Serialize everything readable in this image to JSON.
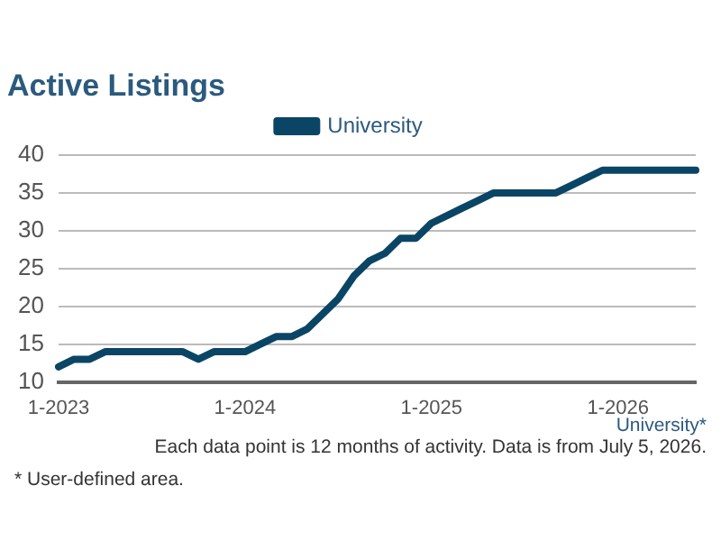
{
  "chart_data": {
    "type": "line",
    "title": "Active Listings",
    "categories": [
      "1-2023",
      null,
      null,
      null,
      null,
      null,
      null,
      null,
      null,
      null,
      null,
      null,
      "1-2024",
      null,
      null,
      null,
      null,
      null,
      null,
      null,
      null,
      null,
      null,
      null,
      "1-2025",
      null,
      null,
      null,
      null,
      null,
      null,
      null,
      null,
      null,
      null,
      null,
      "1-2026",
      null,
      null,
      null,
      null,
      null
    ],
    "series": [
      {
        "name": "University",
        "color": "#0b4566",
        "values": [
          12,
          13,
          13,
          14,
          14,
          14,
          14,
          14,
          14,
          13,
          14,
          14,
          14,
          15,
          16,
          16,
          17,
          19,
          21,
          24,
          26,
          27,
          29,
          29,
          31,
          32,
          33,
          34,
          35,
          35,
          35,
          35,
          35,
          36,
          37,
          38,
          38,
          38,
          38,
          38,
          38,
          38
        ]
      }
    ],
    "ylim": [
      10,
      40
    ],
    "yticks": [
      10,
      15,
      20,
      25,
      30,
      35,
      40
    ],
    "grid": "y",
    "legend": "top",
    "marker": "none",
    "line_style": "solid",
    "annotations": [
      "University*",
      "Each data point is 12 months of activity. Data is from July 5, 2026.",
      "* User-defined area."
    ]
  }
}
